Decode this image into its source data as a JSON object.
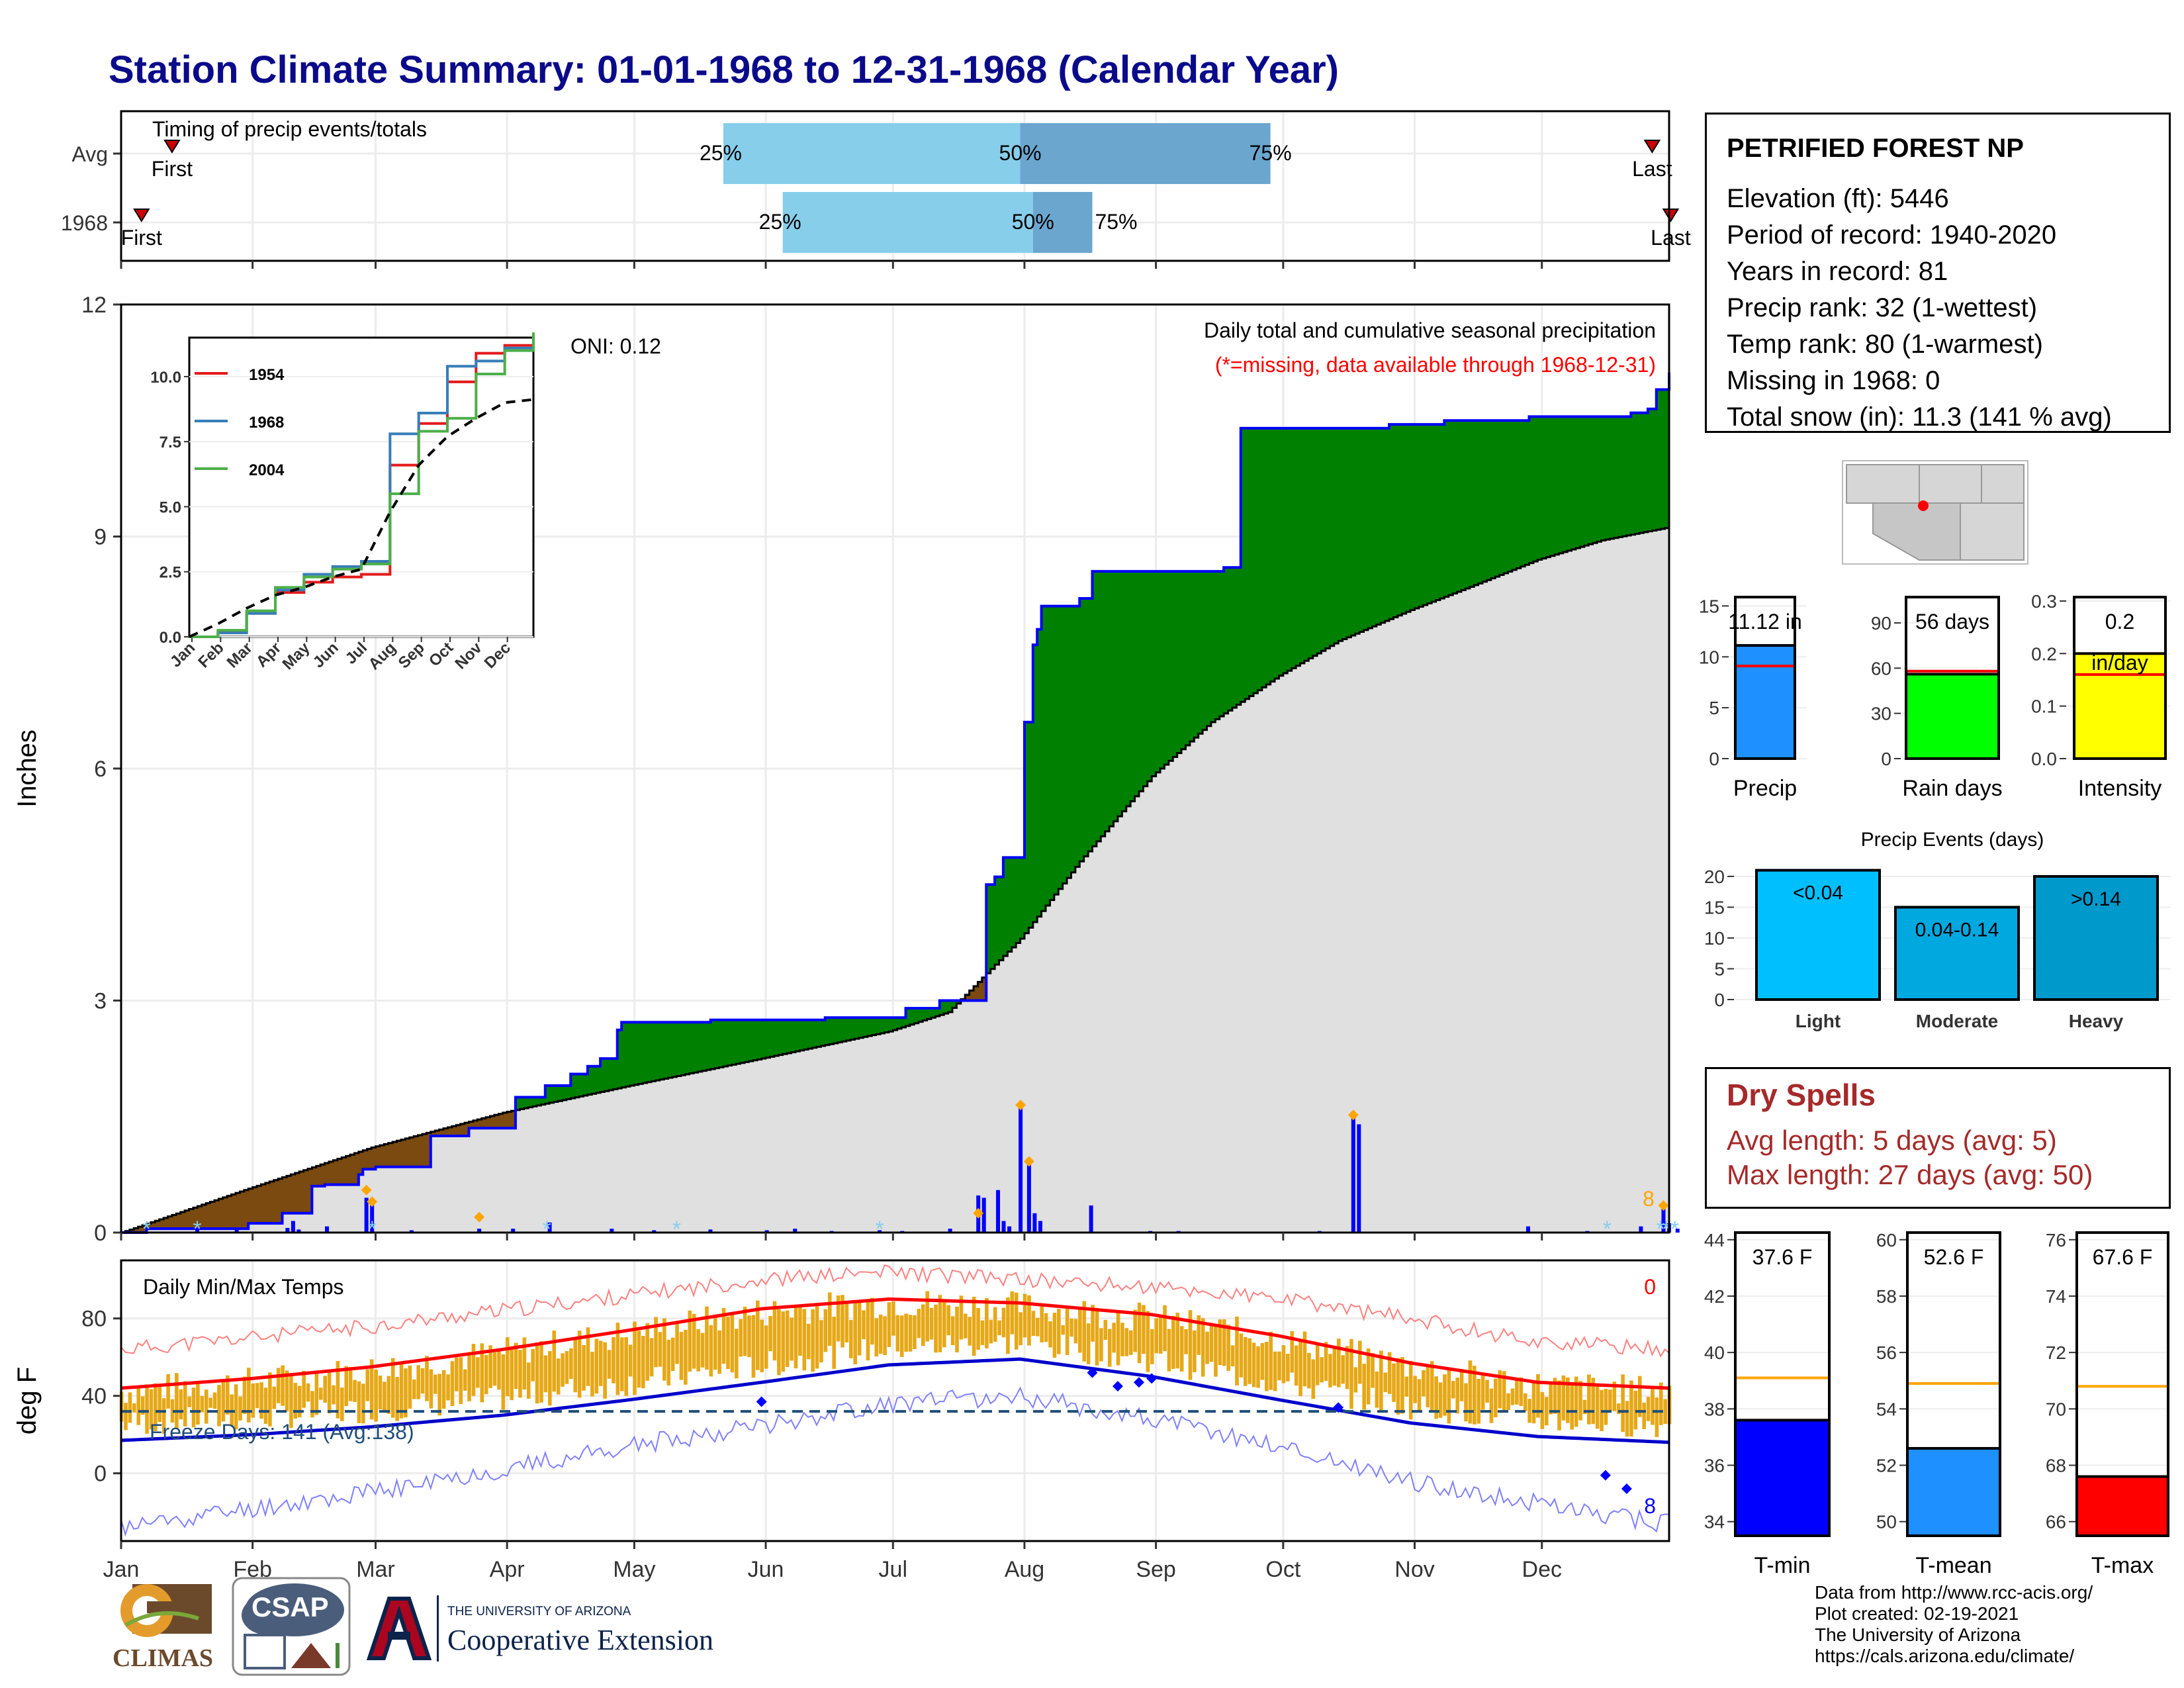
{
  "title": "Station Climate Summary: 01-01-1968 to 12-31-1968 (Calendar Year)",
  "colors": {
    "title": "#0a0a8a",
    "obs": "#0000ff",
    "avg_fill": "#e0e0e0",
    "above": "#008000",
    "below": "#7a4a10",
    "tmax": "#ff0000",
    "tmin": "#0000cc",
    "bars": "#e6a817",
    "freeze": "#1f4e79",
    "q_light": "#87ceeb",
    "q_dark": "#6ba6cf",
    "dry": "#a52a2a"
  },
  "station": {
    "name": "PETRIFIED FOREST NP",
    "lines": [
      "Elevation (ft): 5446",
      "Period of record: 1940-2020",
      "Years in record: 81",
      "Precip rank: 32 (1-wettest)",
      "Temp rank: 80 (1-warmest)",
      "Missing in 1968: 0",
      "Total snow (in): 11.3 (141 % avg)"
    ]
  },
  "dry_spells": {
    "title": "Dry Spells",
    "avg": "Avg length: 5 days (avg: 5)",
    "max": "Max length: 27 days (avg: 50)"
  },
  "footer": [
    "Data from http://www.rcc-acis.org/",
    "Plot created: 02-19-2021",
    "The University of Arizona",
    "https://cals.arizona.edu/climate/"
  ],
  "logos": {
    "climas": "CLIMAS",
    "csap": "CSAP",
    "ua_small": "THE UNIVERSITY OF ARIZONA",
    "ua_big": "Cooperative Extension"
  },
  "chart_data": [
    {
      "id": "timing",
      "type": "bar",
      "title": "Timing of precip events/totals",
      "rows": [
        {
          "label": "Avg",
          "first_day": 13,
          "last_day": 362,
          "q25": "2024-05-22",
          "q50": "2024-07-31",
          "q75": "2024-09-28",
          "labels": [
            "First",
            "25%",
            "50%",
            "75%",
            "Last"
          ]
        },
        {
          "label": "1968",
          "first_day": 3,
          "last_day": 367,
          "q25": "2024-06-05",
          "q50": "2024-08-03",
          "q75": "2024-08-17",
          "labels": [
            "First",
            "25%",
            "50%",
            "75%",
            "Last"
          ]
        }
      ]
    },
    {
      "id": "precip",
      "type": "area",
      "title": "Daily total and cumulative seasonal precipitation",
      "subtitle": "(*=missing, data available through 1968-12-31)",
      "annotation": "ONI: 0.12",
      "ylabel": "Inches",
      "ylim": [
        0,
        12
      ],
      "yticks": [
        0,
        3,
        6,
        9,
        12
      ],
      "xticks": [
        "Jan",
        "Feb",
        "Mar",
        "Apr",
        "May",
        "Jun",
        "Jul",
        "Aug",
        "Sep",
        "Oct",
        "Nov",
        "Dec"
      ],
      "snow_days_label": "8",
      "observed_cumulative": [
        [
          1,
          0
        ],
        [
          10,
          0.05
        ],
        [
          35,
          0.05
        ],
        [
          45,
          0.12
        ],
        [
          58,
          0.25
        ],
        [
          68,
          0.6
        ],
        [
          72,
          0.62
        ],
        [
          85,
          0.75
        ],
        [
          86,
          0.82
        ],
        [
          90,
          0.85
        ],
        [
          110,
          1.25
        ],
        [
          124,
          1.35
        ],
        [
          140,
          1.75
        ],
        [
          150,
          1.9
        ],
        [
          160,
          2.05
        ],
        [
          165,
          2.15
        ],
        [
          170,
          2.25
        ],
        [
          176,
          2.62
        ],
        [
          177,
          2.72
        ],
        [
          210,
          2.75
        ],
        [
          250,
          2.78
        ],
        [
          278,
          2.9
        ],
        [
          290,
          3.0
        ],
        [
          307,
          4.5
        ],
        [
          310,
          4.6
        ],
        [
          313,
          4.85
        ],
        [
          320,
          6.6
        ],
        [
          323,
          7.6
        ],
        [
          325,
          7.8
        ],
        [
          327,
          8.1
        ],
        [
          340,
          8.2
        ],
        [
          344,
          8.55
        ],
        [
          392,
          8.6
        ],
        [
          398,
          10.4
        ],
        [
          450,
          10.45
        ],
        [
          470,
          10.5
        ],
        [
          500,
          10.55
        ],
        [
          535,
          10.6
        ],
        [
          542,
          10.65
        ],
        [
          545,
          10.9
        ],
        [
          550,
          11.12
        ]
      ],
      "avg_cumulative": [
        [
          1,
          0
        ],
        [
          30,
          0.55
        ],
        [
          60,
          1.1
        ],
        [
          91,
          1.55
        ],
        [
          121,
          1.9
        ],
        [
          152,
          2.25
        ],
        [
          182,
          2.6
        ],
        [
          196,
          2.85
        ],
        [
          213,
          3.8
        ],
        [
          227,
          4.8
        ],
        [
          244,
          5.9
        ],
        [
          258,
          6.6
        ],
        [
          274,
          7.2
        ],
        [
          288,
          7.65
        ],
        [
          305,
          8.05
        ],
        [
          319,
          8.35
        ],
        [
          335,
          8.7
        ],
        [
          350,
          8.95
        ],
        [
          366,
          9.12
        ]
      ],
      "daily_bars": [
        [
          28,
          0.05
        ],
        [
          42,
          0.05
        ],
        [
          60,
          0.06
        ],
        [
          62,
          0.15
        ],
        [
          64,
          0.04
        ],
        [
          74,
          0.08
        ],
        [
          88,
          0.45
        ],
        [
          90,
          0.4
        ],
        [
          104,
          0.03
        ],
        [
          128,
          0.05
        ],
        [
          140,
          0.05
        ],
        [
          153,
          0.13
        ],
        [
          175,
          0.05
        ],
        [
          190,
          0.03
        ],
        [
          210,
          0.04
        ],
        [
          230,
          0.03
        ],
        [
          240,
          0.05
        ],
        [
          253,
          0.02
        ],
        [
          270,
          0.03
        ],
        [
          278,
          0.02
        ],
        [
          295,
          0.05
        ],
        [
          305,
          0.48
        ],
        [
          307,
          0.45
        ],
        [
          312,
          0.55
        ],
        [
          314,
          0.15
        ],
        [
          316,
          0.08
        ],
        [
          320,
          1.65
        ],
        [
          323,
          0.92
        ],
        [
          325,
          0.25
        ],
        [
          327,
          0.15
        ],
        [
          345,
          0.35
        ],
        [
          366,
          0.02
        ],
        [
          376,
          0.02
        ],
        [
          426,
          0.02
        ],
        [
          438,
          1.52
        ],
        [
          440,
          1.4
        ],
        [
          500,
          0.08
        ],
        [
          521,
          0.02
        ],
        [
          540,
          0.08
        ],
        [
          548,
          0.35
        ],
        [
          550,
          0.12
        ],
        [
          553,
          0.05
        ]
      ],
      "avg_daily_markers": [
        88,
        90,
        128,
        151,
        175,
        234,
        239,
        278,
        330,
        351,
        401,
        440,
        459,
        470,
        481
      ],
      "inset": {
        "type": "line",
        "ylim": [
          0,
          11.5
        ],
        "yticks": [
          "0.0",
          "2.5",
          "5.0",
          "7.5",
          "10.0"
        ],
        "xticks": [
          "Jan",
          "Feb",
          "Mar",
          "Apr",
          "May",
          "Jun",
          "Jul",
          "Aug",
          "Sep",
          "Oct",
          "Nov",
          "Dec"
        ],
        "series": [
          {
            "name": "1954",
            "values": [
              0,
              0.2,
              0.9,
              1.7,
              2.1,
              2.3,
              2.4,
              6.6,
              8.2,
              9.8,
              10.9,
              11.2,
              11.5
            ]
          },
          {
            "name": "1968",
            "values": [
              0,
              0.15,
              0.9,
              1.8,
              2.4,
              2.7,
              2.9,
              7.8,
              8.6,
              10.4,
              10.6,
              11.1,
              11.12
            ]
          },
          {
            "name": "2004",
            "values": [
              0,
              0.25,
              1.0,
              1.9,
              2.3,
              2.6,
              2.8,
              5.5,
              7.9,
              8.4,
              10.1,
              11.0,
              11.7
            ]
          }
        ],
        "avg": [
          0,
          0.5,
          1.1,
          1.6,
          1.9,
          2.3,
          2.6,
          4.8,
          6.6,
          7.7,
          8.4,
          9.0,
          9.12
        ]
      }
    },
    {
      "id": "temps",
      "type": "line",
      "title": "Daily Min/Max Temps",
      "ylabel": "deg F",
      "ylim": [
        -35,
        110
      ],
      "yticks": [
        0,
        40,
        80
      ],
      "freeze_label": "Freeze Days: 141 (Avg:138)",
      "freeze_line": 32,
      "hot_count": "0",
      "cold_count": "8",
      "xticks": [
        "Jan",
        "Feb",
        "Mar",
        "Apr",
        "May",
        "Jun",
        "Jul",
        "Aug",
        "Sep",
        "Oct",
        "Nov",
        "Dec"
      ],
      "avg_tmax": [
        [
          1,
          44
        ],
        [
          32,
          49
        ],
        [
          60,
          55
        ],
        [
          91,
          64
        ],
        [
          121,
          74
        ],
        [
          152,
          85
        ],
        [
          182,
          90
        ],
        [
          213,
          88
        ],
        [
          244,
          82
        ],
        [
          274,
          71
        ],
        [
          305,
          57
        ],
        [
          335,
          47
        ],
        [
          366,
          44
        ]
      ],
      "avg_tmin": [
        [
          1,
          17
        ],
        [
          32,
          20
        ],
        [
          60,
          24
        ],
        [
          91,
          30
        ],
        [
          121,
          38
        ],
        [
          152,
          47
        ],
        [
          182,
          56
        ],
        [
          213,
          59
        ],
        [
          244,
          50
        ],
        [
          274,
          38
        ],
        [
          305,
          26
        ],
        [
          335,
          19
        ],
        [
          366,
          16
        ]
      ],
      "rec_tmax": [
        [
          1,
          64
        ],
        [
          32,
          70
        ],
        [
          60,
          76
        ],
        [
          91,
          84
        ],
        [
          121,
          92
        ],
        [
          152,
          100
        ],
        [
          182,
          104
        ],
        [
          213,
          100
        ],
        [
          244,
          96
        ],
        [
          274,
          90
        ],
        [
          305,
          80
        ],
        [
          335,
          68
        ],
        [
          366,
          64
        ]
      ],
      "rec_tmin": [
        [
          1,
          -28
        ],
        [
          32,
          -18
        ],
        [
          60,
          -10
        ],
        [
          91,
          2
        ],
        [
          121,
          14
        ],
        [
          152,
          25
        ],
        [
          182,
          36
        ],
        [
          213,
          40
        ],
        [
          244,
          28
        ],
        [
          274,
          14
        ],
        [
          305,
          -4
        ],
        [
          335,
          -16
        ],
        [
          366,
          -26
        ]
      ]
    },
    {
      "id": "precip_bar",
      "type": "bar",
      "categories": [
        "Precip"
      ],
      "values": [
        11.12
      ],
      "avg": 9.1,
      "label": "11.12 in",
      "ylim": [
        0,
        16
      ],
      "yticks": [
        "0",
        "5",
        "10",
        "15"
      ]
    },
    {
      "id": "raindays_bar",
      "type": "bar",
      "categories": [
        "Rain days"
      ],
      "values": [
        56
      ],
      "avg": 58,
      "label": "56 days",
      "ylim": [
        0,
        108
      ],
      "yticks": [
        "0",
        "30",
        "60",
        "90"
      ]
    },
    {
      "id": "intensity_bar",
      "type": "bar",
      "categories": [
        "Intensity"
      ],
      "values": [
        0.2
      ],
      "avg": 0.16,
      "label": [
        "0.2",
        "in/day"
      ],
      "ylim": [
        0,
        0.31
      ],
      "yticks": [
        "0.0",
        "0.1",
        "0.2",
        "0.3"
      ]
    },
    {
      "id": "events_bar",
      "type": "bar",
      "title": "Precip Events (days)",
      "categories": [
        "Light",
        "Moderate",
        "Heavy"
      ],
      "values": [
        21,
        15,
        20
      ],
      "labels": [
        "<0.04",
        "0.04-0.14",
        ">0.14"
      ],
      "ylim": [
        0,
        21.5
      ],
      "yticks": [
        "0",
        "5",
        "10",
        "15",
        "20"
      ]
    },
    {
      "id": "tmin_bar",
      "type": "bar",
      "categories": [
        "T-min"
      ],
      "values": [
        37.6
      ],
      "avg": 39.1,
      "label": "37.6 F",
      "ylim": [
        33.5,
        44.3
      ],
      "yticks": [
        "34",
        "36",
        "38",
        "40",
        "42",
        "44"
      ]
    },
    {
      "id": "tmean_bar",
      "type": "bar",
      "categories": [
        "T-mean"
      ],
      "values": [
        52.6
      ],
      "avg": 54.9,
      "label": "52.6 F",
      "ylim": [
        49.5,
        60.3
      ],
      "yticks": [
        "50",
        "52",
        "54",
        "56",
        "58",
        "60"
      ]
    },
    {
      "id": "tmax_bar",
      "type": "bar",
      "categories": [
        "T-max"
      ],
      "values": [
        67.6
      ],
      "avg": 70.8,
      "label": "67.6 F",
      "ylim": [
        65.5,
        76.3
      ],
      "yticks": [
        "66",
        "68",
        "70",
        "72",
        "74",
        "76"
      ]
    }
  ]
}
